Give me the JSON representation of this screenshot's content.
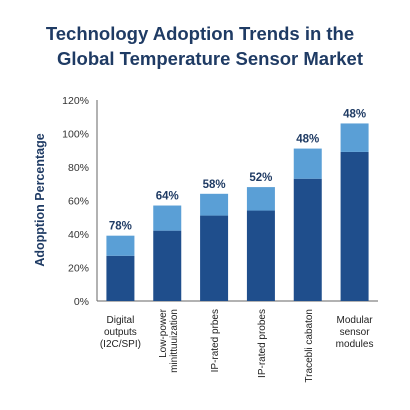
{
  "chart_data": {
    "type": "bar",
    "stacked": true,
    "title_lines": [
      "Technology Adoption Trends in the",
      "Global Temperature Sensor Market"
    ],
    "ylabel": "Adopption Percentage",
    "xlabel": "",
    "ylim": [
      0,
      100
    ],
    "y_axis_max_display": 120,
    "yticks": [
      "0%",
      "20%",
      "40%",
      "60%",
      "80%",
      "100%",
      "120%"
    ],
    "grid": false,
    "categories": [
      [
        "Digital",
        "outputs",
        "(I2C/SPI)"
      ],
      [
        "Low-power",
        "minittuuization"
      ],
      [
        "IP-rated prbes"
      ],
      [
        "IP-rated probes"
      ],
      [
        "Tracebli cabaton"
      ],
      [
        "Modular",
        "sensor",
        "modules"
      ]
    ],
    "category_rotated": [
      false,
      true,
      true,
      true,
      true,
      false
    ],
    "series": [
      {
        "values": [
          27,
          42,
          51,
          54,
          73,
          89
        ]
      },
      {
        "values": [
          12,
          15,
          13,
          14,
          18,
          17
        ]
      }
    ],
    "data_labels": [
      "78%",
      "64%",
      "58%",
      "52%",
      "48%",
      "48%"
    ],
    "colors": {
      "base": "#1f4e8c",
      "top": "#5a9fd6",
      "text": "#1f3b64"
    }
  }
}
